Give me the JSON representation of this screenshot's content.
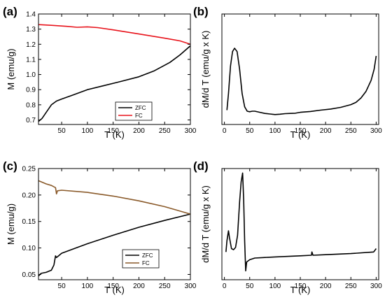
{
  "chart_data": [
    {
      "panel": "(a)",
      "type": "line",
      "xlabel": "T (K)",
      "ylabel": "M (emu/g)",
      "xlim": [
        5,
        300
      ],
      "ylim": [
        0.67,
        1.4
      ],
      "xticks": [
        50,
        100,
        150,
        200,
        250,
        300
      ],
      "yticks": [
        0.7,
        0.8,
        0.9,
        1.0,
        1.1,
        1.2,
        1.3,
        1.4
      ],
      "yticklabels": [
        "0.7",
        "0.8",
        "0.9",
        "1.0",
        "1.1",
        "1.2",
        "1.3",
        "1.4"
      ],
      "legend": {
        "position": "bottom-center"
      },
      "series": [
        {
          "name": "ZFC",
          "color": "#000000",
          "x": [
            5,
            12,
            20,
            30,
            40,
            50,
            70,
            100,
            130,
            160,
            200,
            230,
            260,
            280,
            300
          ],
          "y": [
            0.69,
            0.71,
            0.75,
            0.8,
            0.825,
            0.838,
            0.862,
            0.9,
            0.925,
            0.95,
            0.985,
            1.025,
            1.08,
            1.13,
            1.19
          ]
        },
        {
          "name": "FC",
          "color": "#e8141c",
          "x": [
            5,
            30,
            60,
            80,
            100,
            120,
            150,
            200,
            250,
            280,
            300
          ],
          "y": [
            1.33,
            1.325,
            1.318,
            1.312,
            1.315,
            1.31,
            1.295,
            1.268,
            1.24,
            1.222,
            1.2
          ]
        }
      ]
    },
    {
      "panel": "(b)",
      "type": "line",
      "xlabel": "T (K)",
      "ylabel": "dM/d T (emu/g x K)",
      "xlim": [
        -5,
        305
      ],
      "ylim": [
        0,
        1
      ],
      "xticks": [
        0,
        50,
        100,
        150,
        200,
        250,
        300
      ],
      "yticks": [],
      "series": [
        {
          "name": "",
          "color": "#000000",
          "x": [
            5,
            8,
            12,
            16,
            20,
            25,
            30,
            35,
            40,
            45,
            50,
            55,
            60,
            70,
            80,
            90,
            100,
            110,
            120,
            130,
            140,
            150,
            170,
            190,
            210,
            230,
            250,
            260,
            270,
            280,
            290,
            296,
            300
          ],
          "y": [
            0.13,
            0.28,
            0.53,
            0.66,
            0.69,
            0.66,
            0.5,
            0.28,
            0.16,
            0.12,
            0.115,
            0.12,
            0.12,
            0.11,
            0.1,
            0.095,
            0.09,
            0.093,
            0.098,
            0.1,
            0.102,
            0.11,
            0.118,
            0.13,
            0.14,
            0.155,
            0.18,
            0.2,
            0.24,
            0.3,
            0.4,
            0.5,
            0.62
          ]
        }
      ]
    },
    {
      "panel": "(c)",
      "type": "line",
      "xlabel": "T (K)",
      "ylabel": "M (emu/g)",
      "xlim": [
        5,
        300
      ],
      "ylim": [
        0.04,
        0.25
      ],
      "xticks": [
        50,
        100,
        150,
        200,
        250,
        300
      ],
      "yticks": [
        0.05,
        0.1,
        0.15,
        0.2,
        0.25
      ],
      "yticklabels": [
        "0.05",
        "0.10",
        "0.15",
        "0.20",
        "0.25"
      ],
      "legend": {
        "position": "bottom-center"
      },
      "series": [
        {
          "name": "ZFC",
          "color": "#000000",
          "x": [
            5,
            10,
            20,
            30,
            35,
            38,
            40,
            45,
            50,
            100,
            150,
            200,
            250,
            300
          ],
          "y": [
            0.047,
            0.052,
            0.054,
            0.058,
            0.068,
            0.085,
            0.082,
            0.086,
            0.09,
            0.108,
            0.124,
            0.139,
            0.152,
            0.164
          ]
        },
        {
          "name": "FC",
          "color": "#8a5a2a",
          "x": [
            5,
            20,
            30,
            38,
            40,
            42,
            50,
            100,
            150,
            200,
            250,
            300
          ],
          "y": [
            0.227,
            0.221,
            0.218,
            0.214,
            0.202,
            0.208,
            0.209,
            0.205,
            0.198,
            0.189,
            0.178,
            0.164
          ]
        }
      ]
    },
    {
      "panel": "(d)",
      "type": "line",
      "xlabel": "T (K)",
      "ylabel": "dM/d T (emu/g x K)",
      "xlim": [
        -5,
        305
      ],
      "ylim": [
        0,
        1
      ],
      "xticks": [
        0,
        50,
        100,
        150,
        200,
        250,
        300
      ],
      "yticks": [],
      "series": [
        {
          "name": "",
          "color": "#000000",
          "x": [
            3,
            5,
            8,
            10,
            14,
            18,
            22,
            26,
            30,
            33,
            36,
            38,
            40,
            42,
            44,
            50,
            60,
            80,
            100,
            150,
            172,
            173,
            175,
            200,
            250,
            295,
            300
          ],
          "y": [
            0.25,
            0.35,
            0.44,
            0.38,
            0.28,
            0.27,
            0.29,
            0.4,
            0.7,
            0.88,
            0.96,
            0.72,
            0.35,
            0.08,
            0.16,
            0.18,
            0.195,
            0.2,
            0.205,
            0.215,
            0.22,
            0.25,
            0.22,
            0.225,
            0.235,
            0.25,
            0.28
          ]
        }
      ]
    }
  ]
}
